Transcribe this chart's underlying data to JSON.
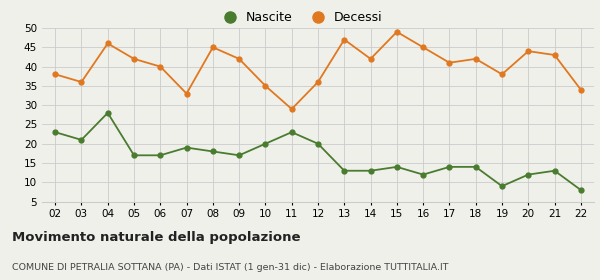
{
  "years": [
    "02",
    "03",
    "04",
    "05",
    "06",
    "07",
    "08",
    "09",
    "10",
    "11",
    "12",
    "13",
    "14",
    "15",
    "16",
    "17",
    "18",
    "19",
    "20",
    "21",
    "22"
  ],
  "nascite": [
    23,
    21,
    28,
    17,
    17,
    19,
    18,
    17,
    20,
    23,
    20,
    13,
    13,
    14,
    12,
    14,
    14,
    9,
    12,
    13,
    8
  ],
  "decessi": [
    38,
    36,
    46,
    42,
    40,
    33,
    45,
    42,
    35,
    29,
    36,
    47,
    42,
    49,
    45,
    41,
    42,
    38,
    44,
    43,
    34
  ],
  "nascite_color": "#4a7c2f",
  "decessi_color": "#e07820",
  "background_color": "#f0f0eb",
  "grid_color": "#cccccc",
  "ylim": [
    5,
    50
  ],
  "yticks": [
    5,
    10,
    15,
    20,
    25,
    30,
    35,
    40,
    45,
    50
  ],
  "title_main": "Movimento naturale della popolazione",
  "title_sub": "COMUNE DI PETRALIA SOTTANA (PA) - Dati ISTAT (1 gen-31 dic) - Elaborazione TUTTITALIA.IT",
  "legend_nascite": "Nascite",
  "legend_decessi": "Decessi"
}
